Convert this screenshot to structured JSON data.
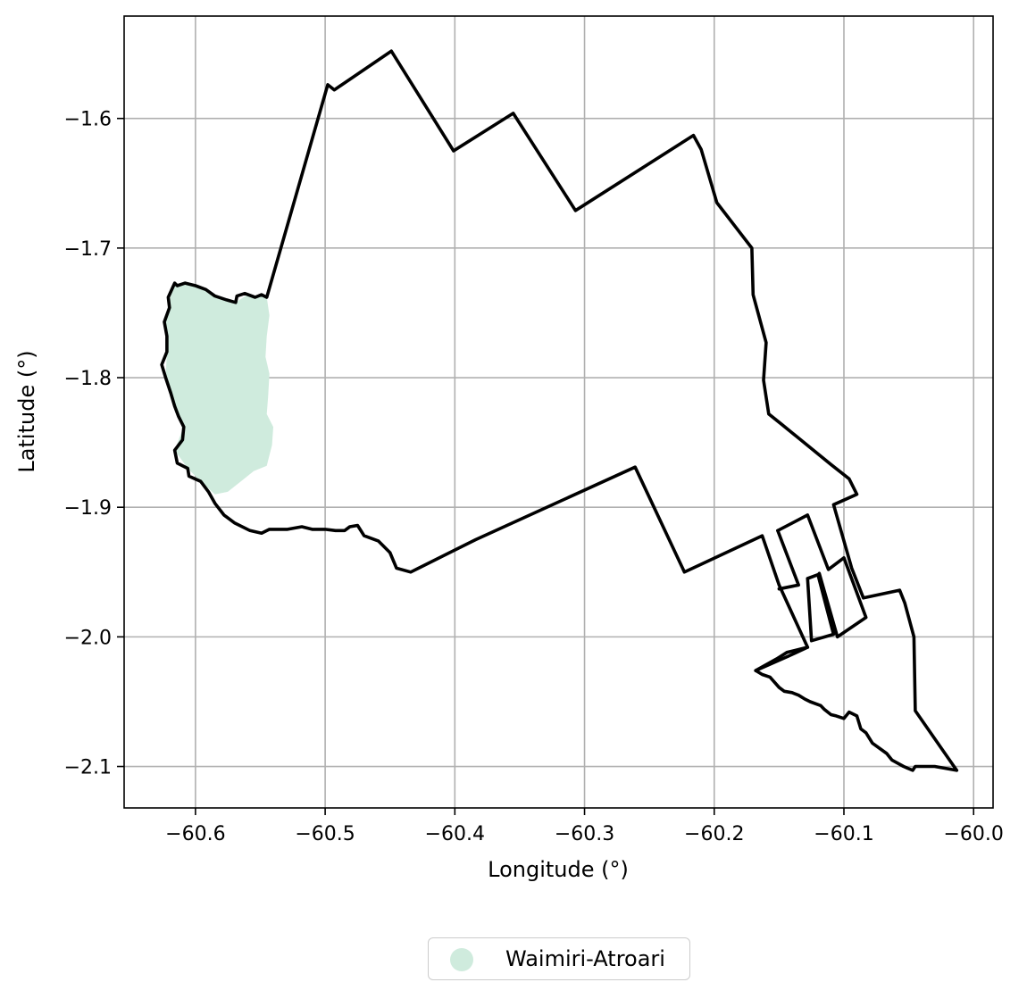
{
  "chart_data": {
    "type": "map",
    "xlabel": "Longitude (°)",
    "ylabel": "Latitude (°)",
    "xlim": [
      -60.655,
      -59.985
    ],
    "ylim": [
      -2.132,
      -1.521
    ],
    "xticks": [
      -60.6,
      -60.5,
      -60.4,
      -60.3,
      -60.2,
      -60.1,
      -60.0
    ],
    "xtick_labels": [
      "−60.6",
      "−60.5",
      "−60.4",
      "−60.3",
      "−60.2",
      "−60.1",
      "−60.0"
    ],
    "yticks": [
      -1.6,
      -1.7,
      -1.8,
      -1.9,
      -2.0,
      -2.1
    ],
    "ytick_labels": [
      "−1.6",
      "−1.7",
      "−1.8",
      "−1.9",
      "−2.0",
      "−2.1"
    ],
    "grid": true,
    "legend_placement": "bottom-center",
    "colors": {
      "fill": "#cfebdd",
      "outline": "#000000",
      "grid": "#b0b0b0"
    },
    "legend": [
      {
        "label": "Waimiri-Atroari"
      }
    ],
    "outline": [
      [
        -60.545,
        -1.738
      ],
      [
        -60.498,
        -1.574
      ],
      [
        -60.493,
        -1.578
      ],
      [
        -60.449,
        -1.548
      ],
      [
        -60.401,
        -1.625
      ],
      [
        -60.355,
        -1.596
      ],
      [
        -60.307,
        -1.671
      ],
      [
        -60.216,
        -1.613
      ],
      [
        -60.21,
        -1.624
      ],
      [
        -60.198,
        -1.665
      ],
      [
        -60.171,
        -1.7
      ],
      [
        -60.17,
        -1.736
      ],
      [
        -60.16,
        -1.773
      ],
      [
        -60.162,
        -1.802
      ],
      [
        -60.158,
        -1.828
      ],
      [
        -60.148,
        -1.836
      ],
      [
        -60.11,
        -1.867
      ],
      [
        -60.096,
        -1.878
      ],
      [
        -60.09,
        -1.89
      ],
      [
        -60.108,
        -1.898
      ],
      [
        -60.094,
        -1.947
      ],
      [
        -60.085,
        -1.97
      ],
      [
        -60.057,
        -1.964
      ],
      [
        -60.053,
        -1.974
      ],
      [
        -60.046,
        -2.0
      ],
      [
        -60.045,
        -2.057
      ],
      [
        -60.013,
        -2.103
      ],
      [
        -60.03,
        -2.1
      ],
      [
        -60.045,
        -2.1
      ],
      [
        -60.047,
        -2.103
      ],
      [
        -60.054,
        -2.1
      ],
      [
        -60.063,
        -2.095
      ],
      [
        -60.067,
        -2.09
      ],
      [
        -60.078,
        -2.082
      ],
      [
        -60.083,
        -2.074
      ],
      [
        -60.087,
        -2.071
      ],
      [
        -60.09,
        -2.061
      ],
      [
        -60.096,
        -2.058
      ],
      [
        -60.1,
        -2.063
      ],
      [
        -60.106,
        -2.061
      ],
      [
        -60.11,
        -2.06
      ],
      [
        -60.115,
        -2.056
      ],
      [
        -60.118,
        -2.053
      ],
      [
        -60.126,
        -2.05
      ],
      [
        -60.13,
        -2.048
      ],
      [
        -60.135,
        -2.045
      ],
      [
        -60.14,
        -2.043
      ],
      [
        -60.146,
        -2.042
      ],
      [
        -60.15,
        -2.039
      ],
      [
        -60.157,
        -2.031
      ],
      [
        -60.163,
        -2.029
      ],
      [
        -60.168,
        -2.026
      ],
      [
        -60.152,
        -2.017
      ],
      [
        -60.144,
        -2.012
      ],
      [
        -60.128,
        -2.008
      ],
      [
        -60.15,
        -1.96
      ],
      [
        -60.163,
        -1.922
      ],
      [
        -60.223,
        -1.95
      ],
      [
        -60.261,
        -1.869
      ],
      [
        -60.384,
        -1.925
      ],
      [
        -60.434,
        -1.95
      ],
      [
        -60.445,
        -1.947
      ],
      [
        -60.45,
        -1.935
      ],
      [
        -60.459,
        -1.926
      ],
      [
        -60.47,
        -1.922
      ],
      [
        -60.475,
        -1.914
      ],
      [
        -60.481,
        -1.915
      ],
      [
        -60.485,
        -1.918
      ],
      [
        -60.492,
        -1.918
      ],
      [
        -60.5,
        -1.917
      ],
      [
        -60.51,
        -1.917
      ],
      [
        -60.518,
        -1.915
      ],
      [
        -60.529,
        -1.917
      ],
      [
        -60.543,
        -1.917
      ],
      [
        -60.549,
        -1.92
      ],
      [
        -60.558,
        -1.918
      ],
      [
        -60.57,
        -1.912
      ],
      [
        -60.578,
        -1.906
      ],
      [
        -60.585,
        -1.897
      ],
      [
        -60.59,
        -1.888
      ],
      [
        -60.596,
        -1.88
      ],
      [
        -60.605,
        -1.876
      ],
      [
        -60.606,
        -1.87
      ],
      [
        -60.614,
        -1.866
      ],
      [
        -60.616,
        -1.856
      ],
      [
        -60.61,
        -1.848
      ],
      [
        -60.609,
        -1.838
      ],
      [
        -60.613,
        -1.83
      ],
      [
        -60.616,
        -1.822
      ],
      [
        -60.619,
        -1.812
      ],
      [
        -60.623,
        -1.8
      ],
      [
        -60.626,
        -1.79
      ],
      [
        -60.622,
        -1.78
      ],
      [
        -60.622,
        -1.768
      ],
      [
        -60.624,
        -1.757
      ],
      [
        -60.62,
        -1.746
      ],
      [
        -60.621,
        -1.738
      ],
      [
        -60.616,
        -1.727
      ],
      [
        -60.614,
        -1.729
      ],
      [
        -60.608,
        -1.727
      ],
      [
        -60.6,
        -1.729
      ],
      [
        -60.592,
        -1.732
      ],
      [
        -60.585,
        -1.737
      ],
      [
        -60.576,
        -1.74
      ],
      [
        -60.569,
        -1.742
      ],
      [
        -60.568,
        -1.737
      ],
      [
        -60.562,
        -1.735
      ],
      [
        -60.554,
        -1.738
      ],
      [
        -60.549,
        -1.736
      ],
      [
        -60.545,
        -1.738
      ]
    ],
    "extra_outlines": [
      [
        [
          -60.168,
          -2.026
        ],
        [
          -60.143,
          -2.015
        ],
        [
          -60.128,
          -2.008
        ]
      ],
      [
        [
          -60.151,
          -1.918
        ],
        [
          -60.128,
          -1.906
        ],
        [
          -60.112,
          -1.948
        ],
        [
          -60.1,
          -1.939
        ],
        [
          -60.083,
          -1.985
        ],
        [
          -60.105,
          -2.0
        ],
        [
          -60.119,
          -1.951
        ]
      ],
      [
        [
          -60.151,
          -1.918
        ],
        [
          -60.135,
          -1.96
        ],
        [
          -60.15,
          -1.963
        ]
      ],
      [
        [
          -60.128,
          -1.955
        ],
        [
          -60.12,
          -1.952
        ],
        [
          -60.108,
          -1.998
        ],
        [
          -60.125,
          -2.003
        ],
        [
          -60.128,
          -1.955
        ]
      ]
    ],
    "fill_region": [
      [
        -60.616,
        -1.727
      ],
      [
        -60.6,
        -1.729
      ],
      [
        -60.585,
        -1.737
      ],
      [
        -60.569,
        -1.742
      ],
      [
        -60.56,
        -1.736
      ],
      [
        -60.545,
        -1.738
      ],
      [
        -60.543,
        -1.752
      ],
      [
        -60.545,
        -1.768
      ],
      [
        -60.546,
        -1.784
      ],
      [
        -60.543,
        -1.797
      ],
      [
        -60.544,
        -1.815
      ],
      [
        -60.545,
        -1.828
      ],
      [
        -60.54,
        -1.838
      ],
      [
        -60.541,
        -1.852
      ],
      [
        -60.545,
        -1.868
      ],
      [
        -60.555,
        -1.872
      ],
      [
        -60.565,
        -1.88
      ],
      [
        -60.575,
        -1.888
      ],
      [
        -60.585,
        -1.89
      ],
      [
        -60.596,
        -1.88
      ],
      [
        -60.606,
        -1.87
      ],
      [
        -60.616,
        -1.856
      ],
      [
        -60.61,
        -1.84
      ],
      [
        -60.616,
        -1.822
      ],
      [
        -60.623,
        -1.8
      ],
      [
        -60.622,
        -1.78
      ],
      [
        -60.624,
        -1.757
      ],
      [
        -60.62,
        -1.74
      ]
    ]
  }
}
